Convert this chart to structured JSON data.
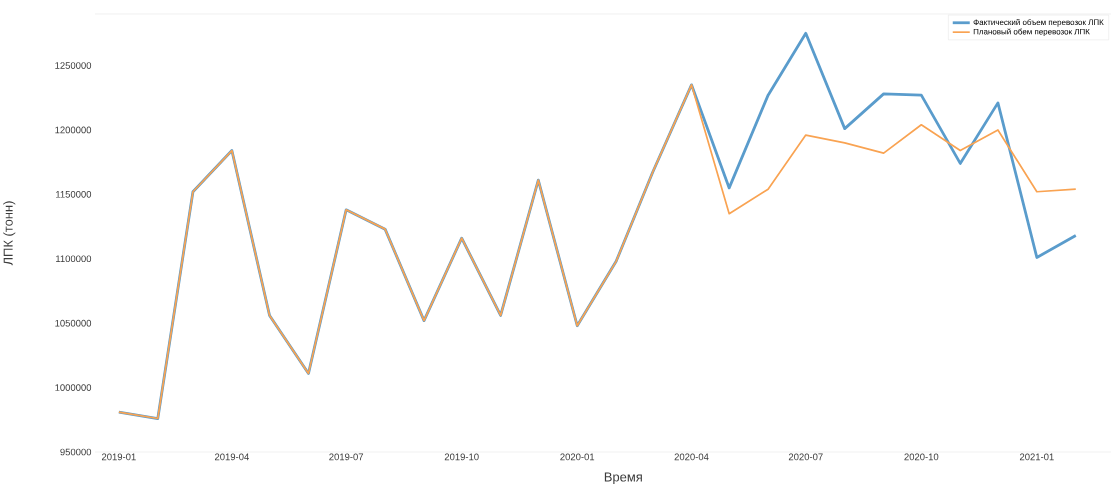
{
  "chart_data": {
    "type": "line",
    "xlabel": "Время",
    "ylabel": "ЛПК (тонн)",
    "x": [
      "2019-01",
      "2019-02",
      "2019-03",
      "2019-04",
      "2019-05",
      "2019-06",
      "2019-07",
      "2019-08",
      "2019-09",
      "2019-10",
      "2019-11",
      "2019-12",
      "2020-01",
      "2020-02",
      "2020-03",
      "2020-04",
      "2020-05",
      "2020-06",
      "2020-07",
      "2020-08",
      "2020-09",
      "2020-10",
      "2020-11",
      "2020-12",
      "2021-01",
      "2021-02"
    ],
    "series": [
      {
        "name": "Фактический объем перевозок ЛПК",
        "color": "#5a9ccc",
        "values": [
          981000,
          976000,
          1152000,
          1184000,
          1056000,
          1011000,
          1138000,
          1123000,
          1052000,
          1116000,
          1056000,
          1161000,
          1048000,
          1098000,
          1167000,
          1235000,
          1155000,
          1227000,
          1275000,
          1201000,
          1228000,
          1227000,
          1174000,
          1221000,
          1101000,
          1118000
        ]
      },
      {
        "name": "Плановый обем перевозок ЛПК",
        "color": "#f9a352",
        "values": [
          981000,
          976000,
          1152000,
          1184000,
          1056000,
          1011000,
          1138000,
          1123000,
          1052000,
          1116000,
          1056000,
          1161000,
          1048000,
          1098000,
          1167000,
          1235000,
          1135000,
          1154000,
          1196000,
          1190000,
          1182000,
          1204000,
          1184000,
          1200000,
          1152000,
          1154000
        ]
      }
    ],
    "xlim": [
      "2018-12-13",
      "2021-03-01"
    ],
    "ylim": [
      950000,
      1290000
    ],
    "xticks": [
      "2019-01",
      "2019-04",
      "2019-07",
      "2019-10",
      "2020-01",
      "2020-04",
      "2020-07",
      "2020-10",
      "2021-01"
    ],
    "yticks": [
      950000,
      1000000,
      1050000,
      1100000,
      1150000,
      1200000,
      1250000
    ],
    "grid": false,
    "legend": "top right"
  }
}
